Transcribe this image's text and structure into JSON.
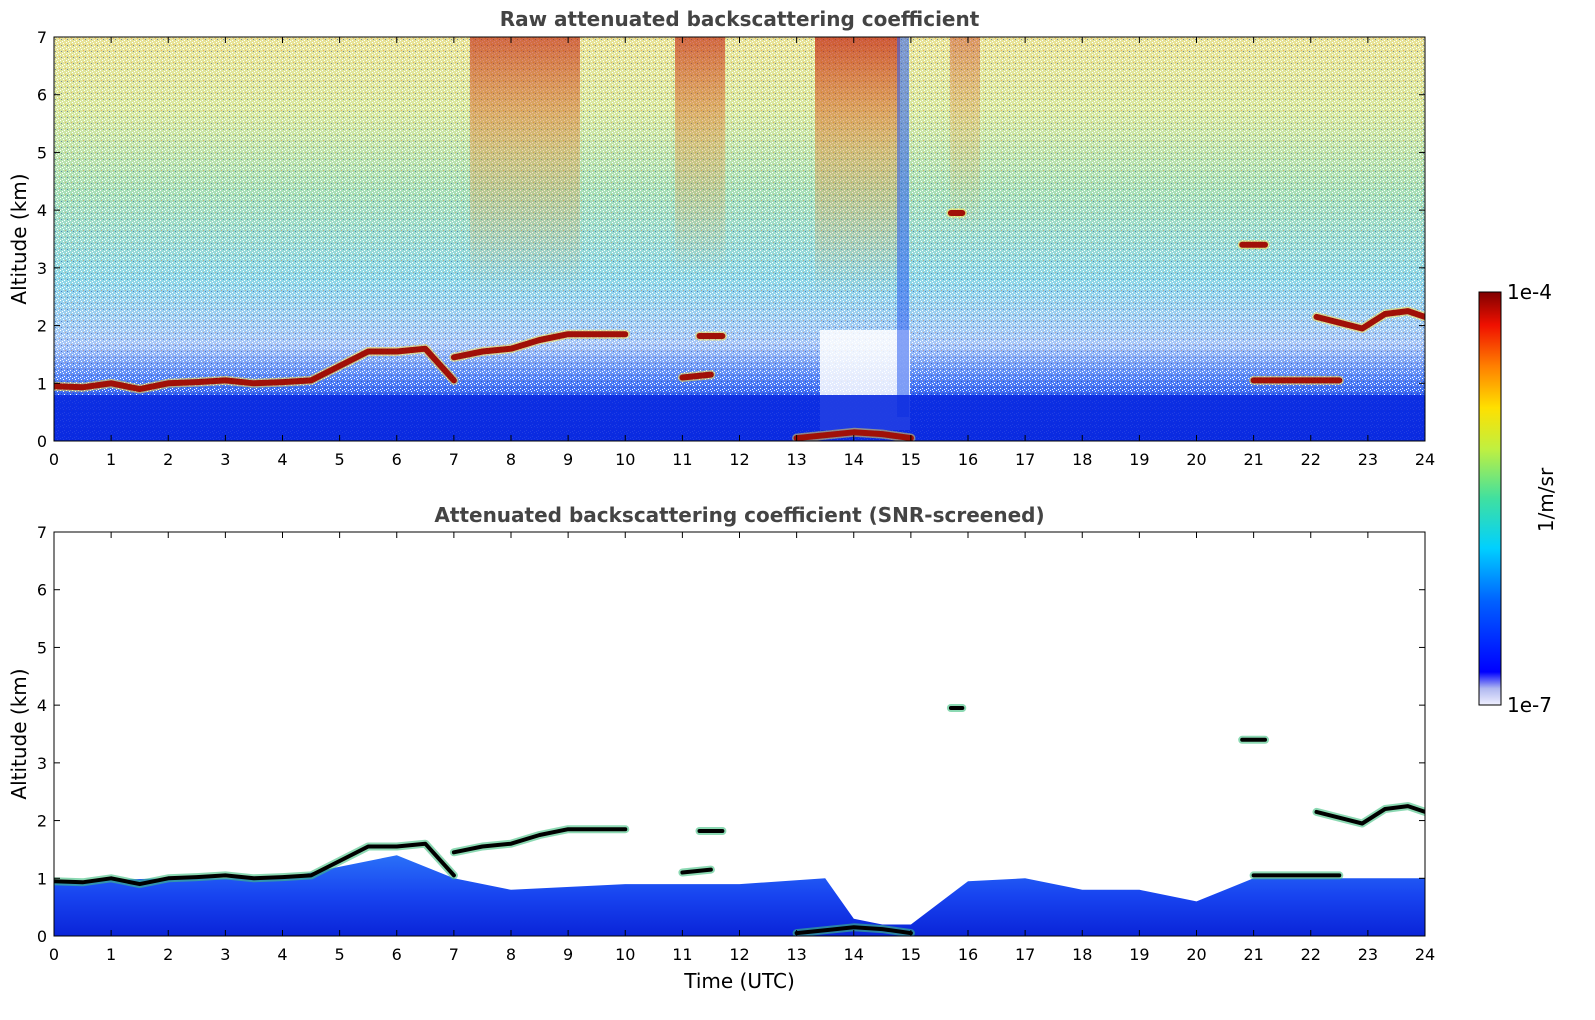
{
  "chart_data": [
    {
      "type": "heatmap",
      "title": "Raw attenuated backscattering coefficient",
      "xlabel": "",
      "ylabel": "Altitude (km)",
      "xlim": [
        0,
        24
      ],
      "ylim": [
        0,
        7
      ],
      "xticks": [
        "0",
        "1",
        "2",
        "3",
        "4",
        "5",
        "6",
        "7",
        "8",
        "9",
        "10",
        "11",
        "12",
        "13",
        "14",
        "15",
        "16",
        "17",
        "18",
        "19",
        "20",
        "21",
        "22",
        "23",
        "24"
      ],
      "yticks": [
        "0",
        "1",
        "2",
        "3",
        "4",
        "5",
        "6",
        "7"
      ],
      "grid": false,
      "cloud_layers": [
        {
          "x": [
            0,
            0.5,
            1,
            1.5,
            2,
            2.5,
            3,
            3.5,
            4,
            4.5,
            5,
            5.5,
            6,
            6.5,
            7
          ],
          "y": [
            0.95,
            0.93,
            1.0,
            0.9,
            1.0,
            1.02,
            1.05,
            1.0,
            1.02,
            1.05,
            1.3,
            1.55,
            1.55,
            1.6,
            1.05
          ]
        },
        {
          "x": [
            7,
            7.5,
            8,
            8.5,
            9,
            9.5,
            10
          ],
          "y": [
            1.45,
            1.55,
            1.6,
            1.75,
            1.85,
            1.85,
            1.85
          ]
        },
        {
          "x": [
            11,
            11.5
          ],
          "y": [
            1.1,
            1.15
          ]
        },
        {
          "x": [
            11.3,
            11.7
          ],
          "y": [
            1.82,
            1.82
          ]
        },
        {
          "x": [
            13,
            13.5,
            14,
            14.5,
            15
          ],
          "y": [
            0.05,
            0.1,
            0.15,
            0.12,
            0.05
          ]
        },
        {
          "x": [
            15.7,
            15.9
          ],
          "y": [
            3.95,
            3.95
          ]
        },
        {
          "x": [
            20.8,
            21.2
          ],
          "y": [
            3.4,
            3.4
          ]
        },
        {
          "x": [
            21,
            21.5,
            22,
            22.5
          ],
          "y": [
            1.05,
            1.05,
            1.05,
            1.05
          ]
        },
        {
          "x": [
            22.1,
            22.5,
            22.9,
            23.3,
            23.7,
            24
          ],
          "y": [
            2.15,
            2.05,
            1.95,
            2.2,
            2.25,
            2.15
          ]
        }
      ]
    },
    {
      "type": "heatmap",
      "title": "Attenuated backscattering coefficient (SNR-screened)",
      "xlabel": "Time (UTC)",
      "ylabel": "Altitude (km)",
      "xlim": [
        0,
        24
      ],
      "ylim": [
        0,
        7
      ],
      "xticks": [
        "0",
        "1",
        "2",
        "3",
        "4",
        "5",
        "6",
        "7",
        "8",
        "9",
        "10",
        "11",
        "12",
        "13",
        "14",
        "15",
        "16",
        "17",
        "18",
        "19",
        "20",
        "21",
        "22",
        "23",
        "24"
      ],
      "yticks": [
        "0",
        "1",
        "2",
        "3",
        "4",
        "5",
        "6",
        "7"
      ],
      "grid": false,
      "boundary_layer_top": {
        "x": [
          0,
          2,
          4,
          6,
          7,
          8,
          10,
          12,
          13.5,
          14,
          14.5,
          15,
          16,
          17,
          18,
          19,
          20,
          21,
          22,
          23,
          24
        ],
        "y": [
          0.95,
          1.0,
          1.0,
          1.4,
          1.0,
          0.8,
          0.9,
          0.9,
          1.0,
          0.3,
          0.2,
          0.2,
          0.95,
          1.0,
          0.8,
          0.8,
          0.6,
          1.0,
          1.0,
          1.0,
          1.0
        ]
      }
    }
  ],
  "colorbar": {
    "max_label": "1e-4",
    "min_label": "1e-7",
    "units": "1/m/sr",
    "colormap": "jet"
  },
  "colors": {
    "ground_blue": "#1030e0",
    "cloud_red": "#a01008",
    "snr_cloud": "#000000",
    "title_gray": "#444444"
  }
}
